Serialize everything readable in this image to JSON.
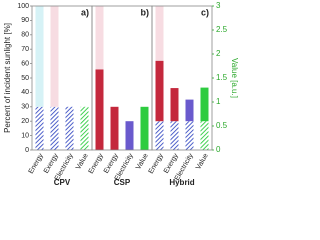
{
  "chart_data": [
    {
      "type": "bar",
      "title": "CPV",
      "panel_label": "a)",
      "ylabel": "Percent of incident sunlight [%]",
      "categories": [
        "Energy",
        "Exergy",
        "Electricity",
        "Value"
      ],
      "ylim": [
        0,
        100
      ],
      "yticks": [
        0,
        10,
        20,
        30,
        40,
        50,
        60,
        70,
        80,
        90,
        100
      ],
      "y2lim": [
        0,
        3
      ],
      "series": [
        {
          "color": "#3b4fc4",
          "hatch": true,
          "values": [
            30,
            30,
            30,
            null
          ]
        },
        {
          "color": "#d6f2f6",
          "values": [
            70,
            null,
            null,
            null
          ]
        },
        {
          "color": "#f7dce2",
          "values": [
            null,
            70,
            null,
            null
          ]
        },
        {
          "color": "#2ecc40",
          "hatch": true,
          "axis": "y2",
          "values": [
            null,
            null,
            null,
            0.9
          ]
        }
      ]
    },
    {
      "type": "bar",
      "title": "CSP",
      "panel_label": "b)",
      "categories": [
        "Energy",
        "Exergy",
        "Electricity",
        "Value"
      ],
      "ylim": [
        0,
        100
      ],
      "y2lim": [
        0,
        3
      ],
      "series": [
        {
          "color": "#c4283c",
          "values": [
            56,
            30,
            null,
            null
          ]
        },
        {
          "color": "#6a5acd",
          "values": [
            null,
            null,
            20,
            null
          ]
        },
        {
          "color": "#f7dce2",
          "values": [
            44,
            null,
            null,
            null
          ]
        },
        {
          "color": "#2ecc40",
          "axis": "y2",
          "values": [
            null,
            null,
            null,
            0.9
          ]
        }
      ]
    },
    {
      "type": "bar",
      "title": "Hybrid",
      "panel_label": "c)",
      "y2label": "Value [a.u.]",
      "categories": [
        "Energy",
        "Exergy",
        "Electricity",
        "Value"
      ],
      "ylim": [
        0,
        100
      ],
      "y2lim": [
        0,
        3
      ],
      "y2ticks": [
        0,
        0.5,
        1,
        1.5,
        2,
        2.5,
        3
      ],
      "y2color": "#2aa82a",
      "series": [
        {
          "color": "#3b4fc4",
          "hatch": true,
          "values": [
            20,
            20,
            20,
            null
          ]
        },
        {
          "color": "#c4283c",
          "values": [
            42,
            23,
            null,
            null
          ]
        },
        {
          "color": "#6a5acd",
          "values": [
            null,
            null,
            15,
            null
          ]
        },
        {
          "color": "#f7dce2",
          "values": [
            38,
            null,
            null,
            null
          ]
        },
        {
          "color": "#2ecc40",
          "hatch": true,
          "axis": "y2",
          "values": [
            null,
            null,
            null,
            0.6
          ]
        },
        {
          "color": "#2ecc40",
          "axis": "y2",
          "values": [
            null,
            null,
            null,
            0.7
          ]
        }
      ]
    }
  ]
}
